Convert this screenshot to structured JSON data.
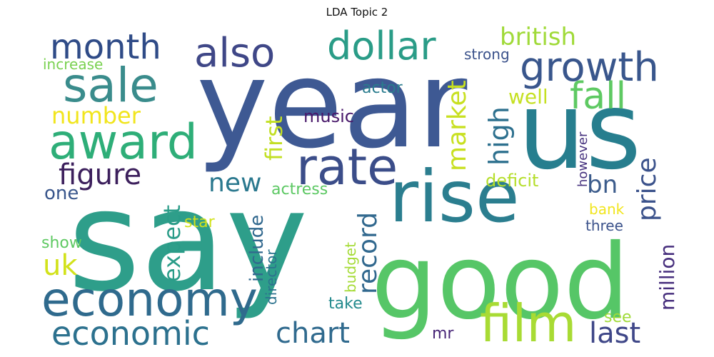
{
  "title": "LDA Topic 2",
  "words": [
    {
      "text": "year",
      "color": "#3e5993"
    },
    {
      "text": "say",
      "color": "#2e9e8a"
    },
    {
      "text": "us",
      "color": "#277e8e"
    },
    {
      "text": "good",
      "color": "#56c667"
    },
    {
      "text": "rise",
      "color": "#2b7e8f"
    },
    {
      "text": "rate",
      "color": "#3b4d89"
    },
    {
      "text": "award",
      "color": "#2eae78"
    },
    {
      "text": "economy",
      "color": "#2f6a8d"
    },
    {
      "text": "film",
      "color": "#a8db34"
    },
    {
      "text": "sale",
      "color": "#3a8c8c"
    },
    {
      "text": "also",
      "color": "#3f4787"
    },
    {
      "text": "dollar",
      "color": "#2a9c87"
    },
    {
      "text": "growth",
      "color": "#39568c"
    },
    {
      "text": "fall",
      "color": "#5ec962"
    },
    {
      "text": "month",
      "color": "#2f4b87"
    },
    {
      "text": "british",
      "color": "#a0da39"
    },
    {
      "text": "economic",
      "color": "#2c718e"
    },
    {
      "text": "chart",
      "color": "#306a8e"
    },
    {
      "text": "last",
      "color": "#3f4788"
    },
    {
      "text": "figure",
      "color": "#3c1f5c"
    },
    {
      "text": "number",
      "color": "#f1e51d"
    },
    {
      "text": "new",
      "color": "#2a788e"
    },
    {
      "text": "high",
      "color": "#2d708e"
    },
    {
      "text": "market",
      "color": "#c8e020"
    },
    {
      "text": "price",
      "color": "#3b528b"
    },
    {
      "text": "record",
      "color": "#31688e"
    },
    {
      "text": "bn",
      "color": "#3b5b8b"
    },
    {
      "text": "uk",
      "color": "#d2e21b"
    },
    {
      "text": "first",
      "color": "#c2df23"
    },
    {
      "text": "expect",
      "color": "#2a9c88"
    },
    {
      "text": "million",
      "color": "#472f7d"
    },
    {
      "text": "well",
      "color": "#c5e021"
    },
    {
      "text": "music",
      "color": "#48186a"
    },
    {
      "text": "actor",
      "color": "#2a7c8e"
    },
    {
      "text": "strong",
      "color": "#3b528b"
    },
    {
      "text": "increase",
      "color": "#7ad151"
    },
    {
      "text": "deficit",
      "color": "#b5de2b"
    },
    {
      "text": "actress",
      "color": "#5cc863"
    },
    {
      "text": "one",
      "color": "#39568c"
    },
    {
      "text": "include",
      "color": "#31688e"
    },
    {
      "text": "however",
      "color": "#46327e"
    },
    {
      "text": "bank",
      "color": "#f1e51d"
    },
    {
      "text": "star",
      "color": "#d2e21b"
    },
    {
      "text": "three",
      "color": "#3b528b"
    },
    {
      "text": "show",
      "color": "#5ec962"
    },
    {
      "text": "director",
      "color": "#2c728e"
    },
    {
      "text": "budget",
      "color": "#a5db36"
    },
    {
      "text": "take",
      "color": "#238a8d"
    },
    {
      "text": "see",
      "color": "#a0da39"
    },
    {
      "text": "mr",
      "color": "#482677"
    }
  ]
}
